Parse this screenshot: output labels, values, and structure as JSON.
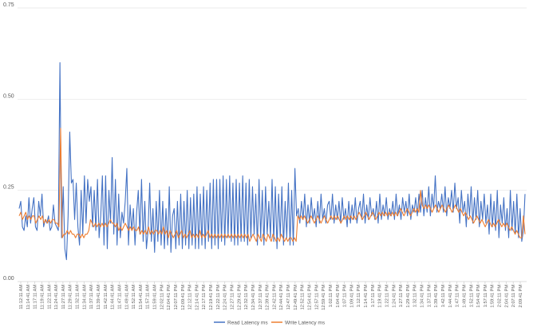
{
  "chart_data": {
    "type": "line",
    "title": "",
    "xlabel": "",
    "ylabel": "",
    "ylim": [
      0,
      0.75
    ],
    "y_ticks": [
      "0.00",
      "0.25",
      "0.50",
      "0.75"
    ],
    "grid": true,
    "legend_position": "bottom",
    "x_tick_labels": [
      "11:12:11 AM",
      "11:14:41 AM",
      "11:17:11 AM",
      "11:19:41 AM",
      "11:22:11 AM",
      "11:24:41 AM",
      "11:27:11 AM",
      "11:29:41 AM",
      "11:32:11 AM",
      "11:34:41 AM",
      "11:37:11 AM",
      "11:39:41 AM",
      "11:42:11 AM",
      "11:44:41 AM",
      "11:47:11 AM",
      "11:49:41 AM",
      "11:52:11 AM",
      "11:54:41 AM",
      "11:57:11 AM",
      "11:59:41 AM",
      "12:02:11 PM",
      "12:04:41 PM",
      "12:07:11 PM",
      "12:09:41 PM",
      "12:12:11 PM",
      "12:14:41 PM",
      "12:17:11 PM",
      "12:19:41 PM",
      "12:22:11 PM",
      "12:24:41 PM",
      "12:27:11 PM",
      "12:29:41 PM",
      "12:32:11 PM",
      "12:34:41 PM",
      "12:37:11 PM",
      "12:39:41 PM",
      "12:42:11 PM",
      "12:44:41 PM",
      "12:47:11 PM",
      "12:49:41 PM",
      "12:52:11 PM",
      "12:54:41 PM",
      "12:57:11 PM",
      "12:59:41 PM",
      "1:02:11 PM",
      "1:04:41 PM",
      "1:07:11 PM",
      "1:09:41 PM",
      "1:12:11 PM",
      "1:14:41 PM",
      "1:17:11 PM",
      "1:19:41 PM",
      "1:22:11 PM",
      "1:24:41 PM",
      "1:27:11 PM",
      "1:29:41 PM",
      "1:32:11 PM",
      "1:34:41 PM",
      "1:37:11 PM",
      "1:39:41 PM",
      "1:42:11 PM",
      "1:44:41 PM",
      "1:47:11 PM",
      "1:49:41 PM",
      "1:52:11 PM",
      "1:54:41 PM",
      "1:57:11 PM",
      "1:59:41 PM",
      "2:02:11 PM",
      "2:04:41 PM",
      "2:07:11 PM",
      "2:09:41 PM"
    ],
    "series": [
      {
        "name": "Read Latency ms",
        "color": "#4472C4",
        "values": [
          0.2,
          0.22,
          0.15,
          0.14,
          0.18,
          0.15,
          0.23,
          0.16,
          0.2,
          0.23,
          0.15,
          0.14,
          0.22,
          0.18,
          0.24,
          0.15,
          0.17,
          0.16,
          0.18,
          0.14,
          0.15,
          0.21,
          0.16,
          0.15,
          0.14,
          0.6,
          0.12,
          0.26,
          0.09,
          0.06,
          0.18,
          0.41,
          0.27,
          0.28,
          0.17,
          0.27,
          0.15,
          0.1,
          0.25,
          0.13,
          0.29,
          0.16,
          0.28,
          0.22,
          0.26,
          0.15,
          0.25,
          0.14,
          0.28,
          0.12,
          0.18,
          0.29,
          0.1,
          0.29,
          0.09,
          0.25,
          0.16,
          0.34,
          0.13,
          0.28,
          0.1,
          0.24,
          0.12,
          0.19,
          0.16,
          0.22,
          0.31,
          0.1,
          0.21,
          0.14,
          0.2,
          0.1,
          0.19,
          0.25,
          0.13,
          0.28,
          0.11,
          0.22,
          0.09,
          0.14,
          0.27,
          0.11,
          0.2,
          0.08,
          0.22,
          0.11,
          0.25,
          0.1,
          0.22,
          0.09,
          0.2,
          0.1,
          0.26,
          0.08,
          0.18,
          0.2,
          0.09,
          0.22,
          0.1,
          0.24,
          0.09,
          0.22,
          0.1,
          0.25,
          0.09,
          0.23,
          0.1,
          0.24,
          0.09,
          0.26,
          0.09,
          0.24,
          0.1,
          0.26,
          0.09,
          0.25,
          0.11,
          0.27,
          0.09,
          0.28,
          0.1,
          0.28,
          0.09,
          0.28,
          0.11,
          0.29,
          0.1,
          0.28,
          0.12,
          0.29,
          0.11,
          0.27,
          0.1,
          0.28,
          0.1,
          0.27,
          0.11,
          0.29,
          0.11,
          0.27,
          0.1,
          0.28,
          0.12,
          0.26,
          0.13,
          0.24,
          0.1,
          0.28,
          0.12,
          0.25,
          0.1,
          0.26,
          0.13,
          0.22,
          0.12,
          0.28,
          0.11,
          0.26,
          0.09,
          0.24,
          0.12,
          0.26,
          0.1,
          0.22,
          0.12,
          0.27,
          0.1,
          0.25,
          0.1,
          0.31,
          0.18,
          0.2,
          0.16,
          0.22,
          0.17,
          0.24,
          0.15,
          0.21,
          0.16,
          0.23,
          0.17,
          0.2,
          0.15,
          0.22,
          0.16,
          0.24,
          0.17,
          0.2,
          0.16,
          0.21,
          0.22,
          0.17,
          0.24,
          0.16,
          0.21,
          0.17,
          0.22,
          0.16,
          0.23,
          0.17,
          0.2,
          0.15,
          0.22,
          0.16,
          0.21,
          0.17,
          0.23,
          0.16,
          0.2,
          0.22,
          0.17,
          0.24,
          0.16,
          0.21,
          0.17,
          0.23,
          0.18,
          0.2,
          0.17,
          0.22,
          0.16,
          0.24,
          0.17,
          0.21,
          0.18,
          0.23,
          0.17,
          0.2,
          0.18,
          0.22,
          0.17,
          0.24,
          0.18,
          0.21,
          0.17,
          0.23,
          0.19,
          0.22,
          0.18,
          0.24,
          0.17,
          0.21,
          0.19,
          0.23,
          0.18,
          0.24,
          0.19,
          0.25,
          0.18,
          0.23,
          0.19,
          0.26,
          0.18,
          0.24,
          0.2,
          0.29,
          0.19,
          0.22,
          0.2,
          0.24,
          0.19,
          0.26,
          0.18,
          0.23,
          0.2,
          0.25,
          0.19,
          0.27,
          0.2,
          0.23,
          0.16,
          0.25,
          0.19,
          0.22,
          0.15,
          0.24,
          0.18,
          0.26,
          0.16,
          0.23,
          0.17,
          0.25,
          0.15,
          0.22,
          0.17,
          0.24,
          0.16,
          0.21,
          0.13,
          0.24,
          0.15,
          0.22,
          0.14,
          0.25,
          0.12,
          0.21,
          0.16,
          0.23,
          0.14,
          0.2,
          0.12,
          0.25,
          0.14,
          0.22,
          0.13,
          0.24,
          0.12,
          0.2,
          0.11,
          0.14,
          0.24
        ]
      },
      {
        "name": "Write Latency ms",
        "color": "#ED7D31",
        "values": [
          0.18,
          0.19,
          0.17,
          0.18,
          0.19,
          0.17,
          0.18,
          0.17,
          0.18,
          0.18,
          0.16,
          0.17,
          0.18,
          0.17,
          0.18,
          0.16,
          0.17,
          0.16,
          0.17,
          0.16,
          0.17,
          0.17,
          0.16,
          0.16,
          0.15,
          0.42,
          0.12,
          0.13,
          0.13,
          0.14,
          0.13,
          0.14,
          0.13,
          0.13,
          0.12,
          0.13,
          0.13,
          0.12,
          0.13,
          0.12,
          0.13,
          0.13,
          0.14,
          0.17,
          0.16,
          0.15,
          0.16,
          0.15,
          0.16,
          0.15,
          0.16,
          0.15,
          0.16,
          0.15,
          0.16,
          0.17,
          0.16,
          0.16,
          0.15,
          0.16,
          0.14,
          0.15,
          0.14,
          0.15,
          0.16,
          0.15,
          0.14,
          0.15,
          0.14,
          0.15,
          0.14,
          0.14,
          0.15,
          0.13,
          0.14,
          0.13,
          0.14,
          0.13,
          0.15,
          0.13,
          0.14,
          0.13,
          0.14,
          0.14,
          0.13,
          0.14,
          0.13,
          0.15,
          0.13,
          0.14,
          0.12,
          0.14,
          0.13,
          0.12,
          0.13,
          0.14,
          0.12,
          0.13,
          0.14,
          0.12,
          0.13,
          0.12,
          0.13,
          0.14,
          0.12,
          0.13,
          0.12,
          0.13,
          0.12,
          0.14,
          0.12,
          0.13,
          0.12,
          0.13,
          0.14,
          0.12,
          0.13,
          0.12,
          0.13,
          0.12,
          0.13,
          0.12,
          0.13,
          0.12,
          0.13,
          0.12,
          0.13,
          0.12,
          0.13,
          0.12,
          0.13,
          0.12,
          0.13,
          0.12,
          0.13,
          0.12,
          0.13,
          0.12,
          0.13,
          0.11,
          0.12,
          0.13,
          0.12,
          0.11,
          0.13,
          0.12,
          0.11,
          0.13,
          0.12,
          0.11,
          0.13,
          0.12,
          0.11,
          0.13,
          0.12,
          0.11,
          0.12,
          0.11,
          0.13,
          0.12,
          0.11,
          0.12,
          0.11,
          0.12,
          0.12,
          0.11,
          0.12,
          0.11,
          0.18,
          0.17,
          0.18,
          0.17,
          0.18,
          0.17,
          0.16,
          0.17,
          0.18,
          0.17,
          0.16,
          0.17,
          0.18,
          0.17,
          0.16,
          0.17,
          0.18,
          0.17,
          0.16,
          0.17,
          0.18,
          0.17,
          0.18,
          0.17,
          0.18,
          0.17,
          0.16,
          0.17,
          0.18,
          0.17,
          0.18,
          0.17,
          0.18,
          0.17,
          0.18,
          0.17,
          0.18,
          0.19,
          0.18,
          0.17,
          0.18,
          0.19,
          0.18,
          0.17,
          0.18,
          0.19,
          0.18,
          0.17,
          0.18,
          0.19,
          0.18,
          0.19,
          0.18,
          0.19,
          0.18,
          0.19,
          0.18,
          0.19,
          0.18,
          0.19,
          0.18,
          0.19,
          0.2,
          0.19,
          0.18,
          0.19,
          0.2,
          0.19,
          0.18,
          0.19,
          0.2,
          0.19,
          0.2,
          0.19,
          0.25,
          0.21,
          0.2,
          0.21,
          0.2,
          0.21,
          0.2,
          0.19,
          0.2,
          0.21,
          0.2,
          0.19,
          0.2,
          0.21,
          0.2,
          0.19,
          0.2,
          0.21,
          0.2,
          0.19,
          0.2,
          0.21,
          0.2,
          0.19,
          0.2,
          0.19,
          0.18,
          0.19,
          0.18,
          0.17,
          0.18,
          0.17,
          0.16,
          0.17,
          0.18,
          0.17,
          0.16,
          0.17,
          0.16,
          0.15,
          0.16,
          0.17,
          0.16,
          0.15,
          0.16,
          0.15,
          0.16,
          0.17,
          0.16,
          0.15,
          0.16,
          0.15,
          0.16,
          0.15,
          0.14,
          0.15,
          0.14,
          0.13,
          0.14,
          0.13,
          0.12,
          0.12,
          0.18,
          0.13
        ]
      }
    ]
  }
}
